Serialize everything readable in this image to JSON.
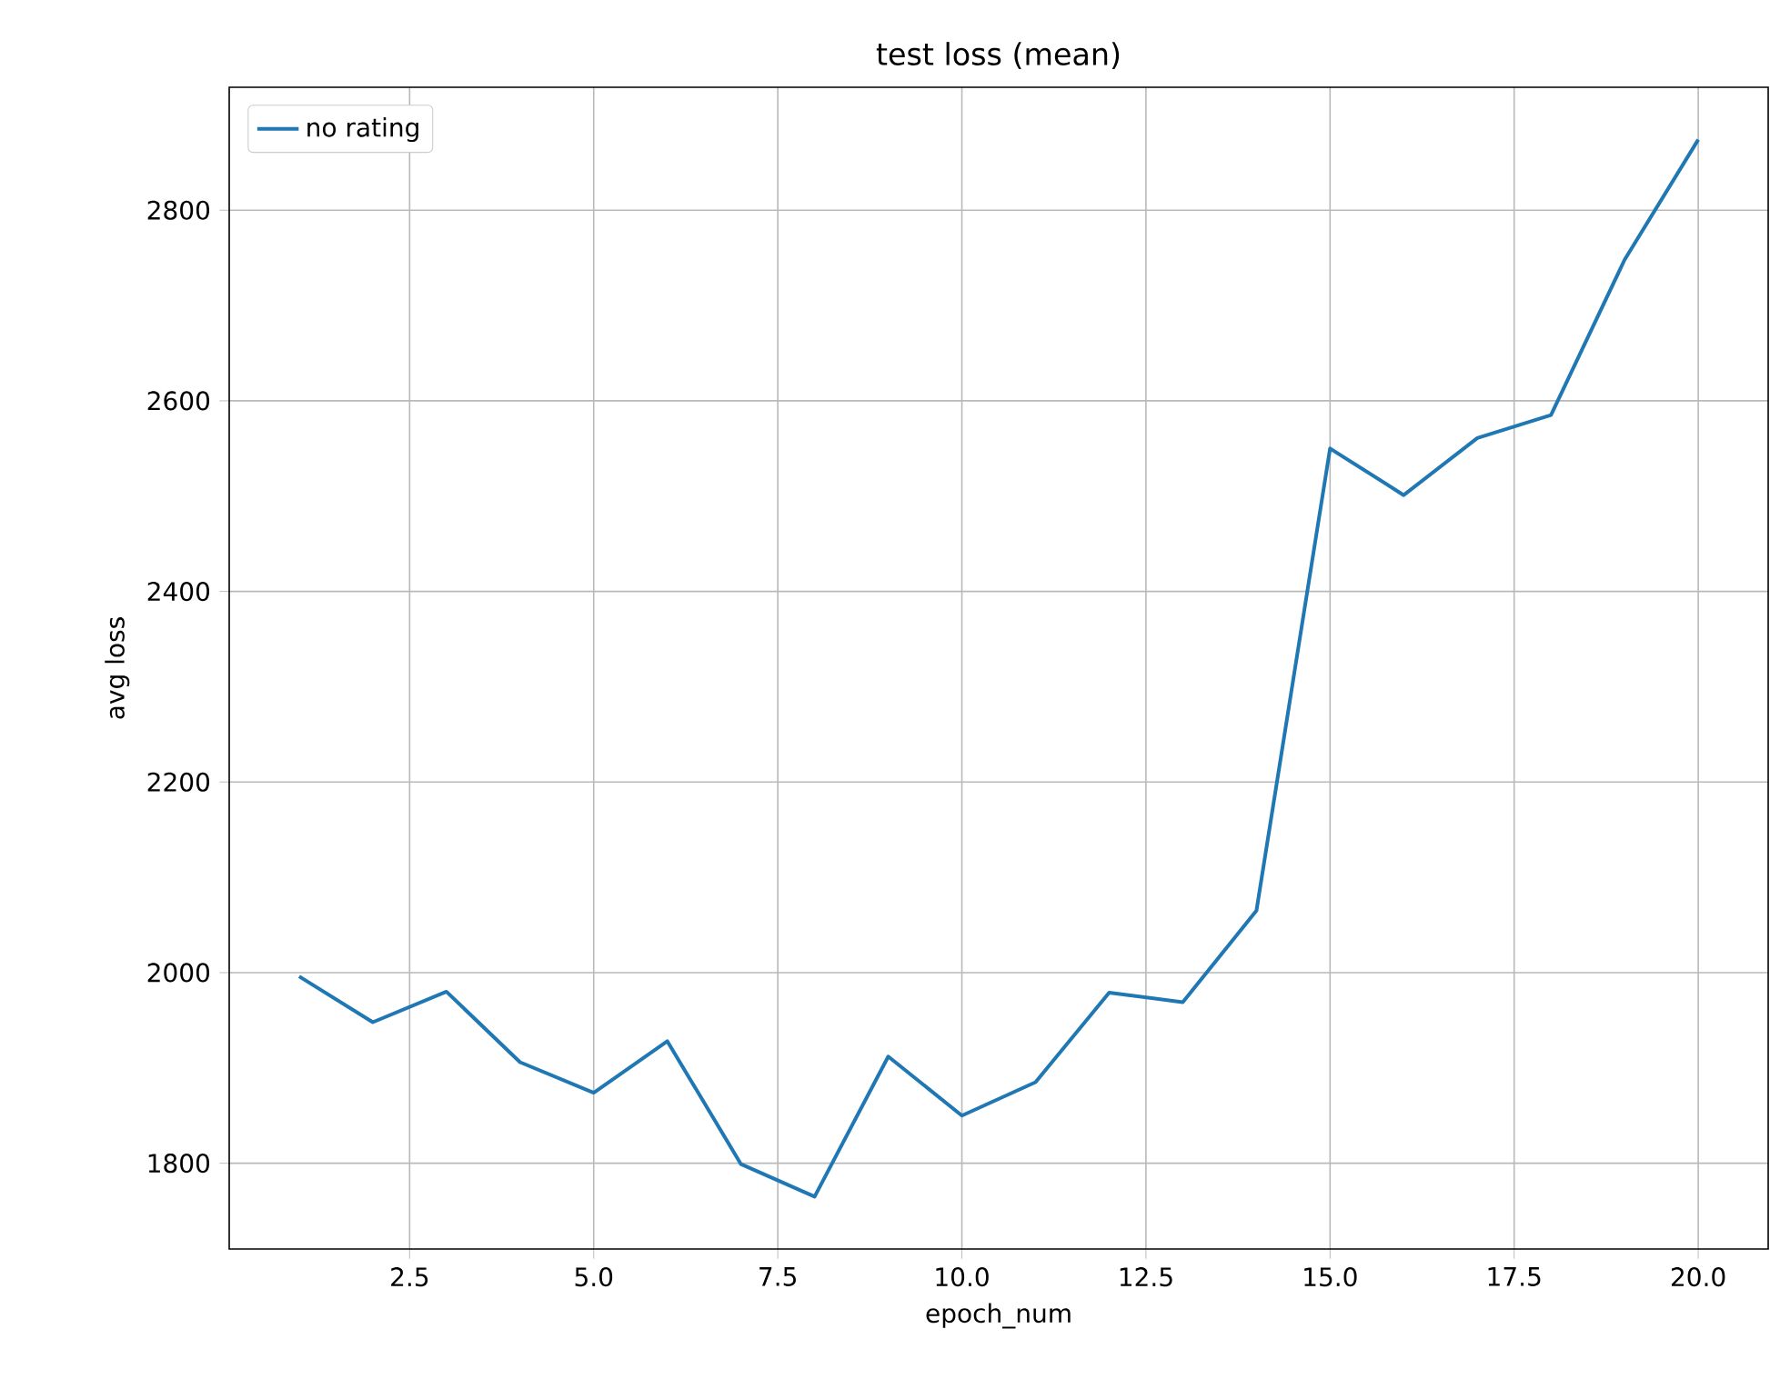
{
  "chart_data": {
    "type": "line",
    "title": "test loss (mean)",
    "xlabel": "epoch_num",
    "ylabel": "avg loss",
    "x": [
      1,
      2,
      3,
      4,
      5,
      6,
      7,
      8,
      9,
      10,
      11,
      12,
      13,
      14,
      15,
      16,
      17,
      18,
      19,
      20
    ],
    "series": [
      {
        "name": "no rating",
        "color": "#1f77b4",
        "values": [
          1996,
          1948,
          1980,
          1906,
          1874,
          1928,
          1799,
          1765,
          1912,
          1850,
          1885,
          1979,
          1969,
          2065,
          2550,
          2501,
          2561,
          2585,
          2748,
          2874
        ]
      }
    ],
    "xlim": [
      0.05,
      20.95
    ],
    "ylim": [
      1710,
      2929
    ],
    "xticks": [
      {
        "value": 2.5,
        "label": "2.5"
      },
      {
        "value": 5,
        "label": "5.0"
      },
      {
        "value": 7.5,
        "label": "7.5"
      },
      {
        "value": 10,
        "label": "10.0"
      },
      {
        "value": 12.5,
        "label": "12.5"
      },
      {
        "value": 15,
        "label": "15.0"
      },
      {
        "value": 17.5,
        "label": "17.5"
      },
      {
        "value": 20,
        "label": "20.0"
      }
    ],
    "yticks": [
      1800,
      2000,
      2200,
      2400,
      2600,
      2800
    ],
    "grid": true,
    "legend": "top left",
    "marker": "none",
    "line_style": "solid"
  }
}
